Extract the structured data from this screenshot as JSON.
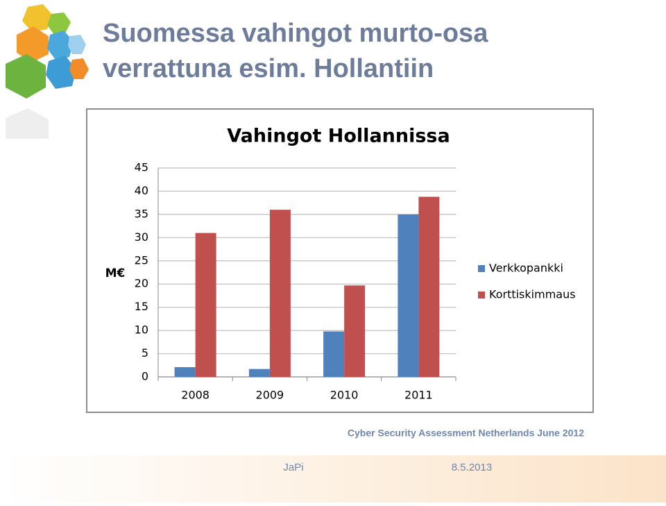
{
  "slide": {
    "title_lines": [
      "Suomessa vahingot murto-osa",
      "verrattuna esim. Hollantiin"
    ]
  },
  "chart_data": {
    "type": "bar",
    "title": "Vahingot Hollannissa",
    "y_label": "M€",
    "categories": [
      "2008",
      "2009",
      "2010",
      "2011"
    ],
    "series": [
      {
        "name": "Verkkopankki",
        "color": "#4f81bd",
        "values": [
          2.1,
          1.7,
          9.8,
          35
        ]
      },
      {
        "name": "Korttiskimmaus",
        "color": "#c0504d",
        "values": [
          31,
          36,
          19.7,
          38.8
        ]
      }
    ],
    "ylim": [
      0,
      45
    ],
    "yticks": [
      0,
      5,
      10,
      15,
      20,
      25,
      30,
      35,
      40,
      45
    ],
    "grid": true,
    "legend": "right"
  },
  "caption": "Cyber Security Assessment Netherlands June 2012",
  "footer": {
    "author": "JaPi",
    "date": "8.5.2013"
  }
}
